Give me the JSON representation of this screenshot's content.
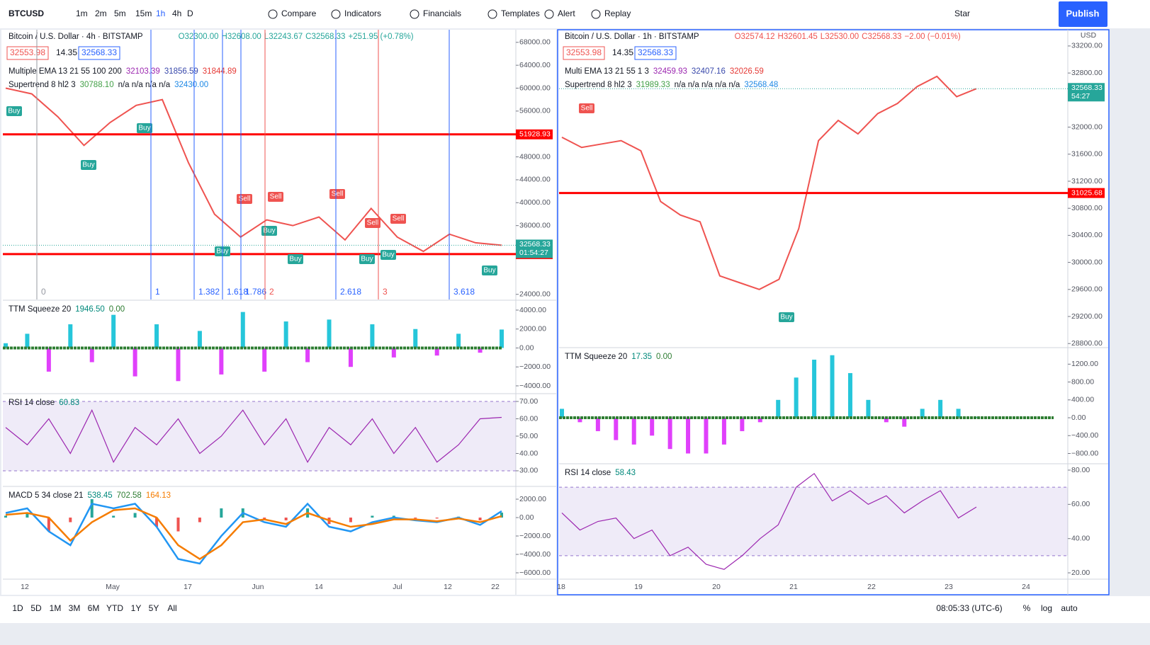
{
  "toolbar": {
    "symbol": "BTCUSD",
    "intervals": [
      "1m",
      "2m",
      "5m",
      "15m",
      "1h",
      "4h",
      "D"
    ],
    "buttons": [
      "Compare",
      "Indicators",
      "Financials",
      "Templates",
      "Alert",
      "Replay"
    ],
    "star": "Star",
    "publish": "Publish"
  },
  "left": {
    "header": {
      "title": "Bitcoin / U.S. Dollar · 4h · BITSTAMP",
      "ohlc": [
        "O32300.00",
        "H32608.00",
        "L32243.67",
        "C32568.33"
      ],
      "change": "+251.95 (+0.78%)",
      "color": "#26a69a",
      "boxes": [
        "32553.98",
        "14.35",
        "32568.33"
      ]
    },
    "studies": [
      {
        "name": "Multiple EMA 13 21 55 100 200",
        "values": [
          "32103.39",
          "31856.59",
          "31844.89"
        ]
      },
      {
        "name": "Supertrend 8 hl2 3",
        "values": [
          "30788.10",
          "n/a n/a n/a n/a",
          "32430.00"
        ]
      }
    ],
    "main": {
      "ylim": [
        23100,
        70200
      ],
      "yticks": [
        {
          "value": 68000,
          "label": "68000.00"
        },
        {
          "value": 64000,
          "label": "64000.00"
        },
        {
          "value": 60000,
          "label": "60000.00"
        },
        {
          "value": 56000,
          "label": "56000.00"
        },
        {
          "value": 48000,
          "label": "48000.00"
        },
        {
          "value": 44000,
          "label": "44000.00"
        },
        {
          "value": 40000,
          "label": "40000.00"
        },
        {
          "value": 36000,
          "label": "36000.00"
        },
        {
          "value": 24000,
          "label": "24000.00"
        }
      ],
      "close": [
        60000,
        59000,
        55000,
        50000,
        54000,
        57000,
        58000,
        47000,
        38000,
        34000,
        37000,
        36000,
        37500,
        33500,
        39000,
        34000,
        31500,
        34500,
        33000,
        32568.33
      ],
      "levels": [
        51928.93,
        31025.68
      ],
      "last": 32568.33,
      "countdown": "01:54:27"
    },
    "fib": [
      0,
      1,
      1.382,
      1.618,
      1.786,
      2,
      2.618,
      3,
      3.618
    ],
    "signals": [
      "Buy",
      "Buy",
      "Buy",
      "Buy",
      "Buy",
      "Buy",
      "Buy",
      "Buy",
      "Buy",
      "Sell",
      "Sell",
      "Sell",
      "Sell",
      "Sell"
    ],
    "ttm": {
      "label": "TTM Squeeze 20",
      "readout": [
        "1946.50",
        "0.00"
      ],
      "ylim": [
        -4750,
        4970
      ],
      "yticks": [
        {
          "value": 4000,
          "label": "4000.00"
        },
        {
          "value": 2000,
          "label": "2000.00"
        },
        {
          "value": 0,
          "label": "0.00"
        },
        {
          "value": -2000,
          "label": "−2000.00"
        },
        {
          "value": -4000,
          "label": "−4000.00"
        }
      ],
      "values": [
        500,
        1500,
        -2500,
        2500,
        -1500,
        3500,
        -3000,
        2500,
        -3500,
        1800,
        -2800,
        3800,
        -2500,
        2800,
        -1500,
        3000,
        -2000,
        2500,
        -1000,
        2000,
        -800,
        1500,
        -500,
        1946.5
      ]
    },
    "rsi": {
      "label": "RSI 14 close",
      "readout": [
        "60.83"
      ],
      "band": [
        30,
        70
      ],
      "ylim": [
        21.4,
        74.1
      ],
      "yticks": [
        {
          "value": 70,
          "label": "70.00"
        },
        {
          "value": 60,
          "label": "60.00"
        },
        {
          "value": 50,
          "label": "50.00"
        },
        {
          "value": 40,
          "label": "40.00"
        },
        {
          "value": 30,
          "label": "30.00"
        }
      ],
      "values": [
        55,
        45,
        60,
        40,
        65,
        35,
        55,
        45,
        60,
        40,
        50,
        65,
        45,
        60,
        35,
        55,
        45,
        60,
        40,
        55,
        35,
        45,
        60,
        60.83
      ]
    },
    "macd": {
      "label": "MACD 5 34 close 21",
      "readout": [
        "538.45",
        "702.58",
        "164.13"
      ],
      "ylim": [
        -6690,
        3310
      ],
      "yticks": [
        {
          "value": 2000,
          "label": "2000.00"
        },
        {
          "value": 0,
          "label": "0.00"
        },
        {
          "value": -2000,
          "label": "−2000.00"
        },
        {
          "value": -4000,
          "label": "−4000.00"
        },
        {
          "value": -6000,
          "label": "−6000.00"
        }
      ],
      "hist": [
        200,
        500,
        -1500,
        -500,
        2000,
        200,
        500,
        -1000,
        -1500,
        -500,
        1000,
        1000,
        -300,
        -300,
        1000,
        -700,
        -500,
        200,
        200,
        -100,
        -100,
        100,
        -300,
        538.45
      ],
      "macd": [
        500,
        1000,
        -1500,
        -3000,
        1500,
        1000,
        1500,
        -1000,
        -4500,
        -5000,
        -2000,
        500,
        -500,
        -1000,
        1500,
        -1000,
        -1500,
        -500,
        0,
        -300,
        -500,
        0,
        -800,
        702.58
      ],
      "signal": [
        300,
        500,
        0,
        -2500,
        -500,
        800,
        1000,
        0,
        -3000,
        -4500,
        -3000,
        -500,
        -200,
        -700,
        500,
        -300,
        -1000,
        -700,
        -200,
        -200,
        -400,
        -100,
        -500,
        164.13
      ],
      "macd_color": "#2196f3",
      "signal_color": "#f57c00"
    },
    "xlabels": [
      "12",
      "May",
      "17",
      "Jun",
      "14",
      "Jul",
      "12",
      "22"
    ]
  },
  "right": {
    "header": {
      "title": "Bitcoin / U.S. Dollar · 1h · BITSTAMP",
      "ohlc": [
        "O32574.12",
        "H32601.45",
        "L32530.00",
        "C32568.33"
      ],
      "change": "−2.00 (−0.01%)",
      "color": "#ef5350",
      "boxes": [
        "32553.98",
        "14.35",
        "32568.33"
      ]
    },
    "studies": [
      {
        "name": "Multi EMA 13 21 55 1 3",
        "values": [
          "32459.93",
          "32407.16",
          "32026.59"
        ]
      },
      {
        "name": "Supertrend 8 hl2 3",
        "values": [
          "31989.33",
          "n/a n/a n/a n/a n/a",
          "32568.48"
        ]
      }
    ],
    "currency": "USD",
    "main": {
      "ylim": [
        28750,
        33440
      ],
      "yticks": [
        {
          "value": 33200,
          "label": "33200.00"
        },
        {
          "value": 32800,
          "label": "32800.00"
        },
        {
          "value": 32000,
          "label": "32000.00"
        },
        {
          "value": 31600,
          "label": "31600.00"
        },
        {
          "value": 31200,
          "label": "31200.00"
        },
        {
          "value": 30800,
          "label": "30800.00"
        },
        {
          "value": 30400,
          "label": "30400.00"
        },
        {
          "value": 30000,
          "label": "30000.00"
        },
        {
          "value": 29600,
          "label": "29600.00"
        },
        {
          "value": 29200,
          "label": "29200.00"
        },
        {
          "value": 28800,
          "label": "28800.00"
        }
      ],
      "close": [
        31850,
        31700,
        31750,
        31800,
        31650,
        30900,
        30700,
        30600,
        29800,
        29700,
        29600,
        29750,
        30500,
        31800,
        32100,
        31900,
        32200,
        32350,
        32600,
        32750,
        32450,
        32568.33
      ],
      "levels": [
        31025.68
      ],
      "last": 32568.33,
      "countdown": "54:27"
    },
    "signals": [
      "Sell",
      "Buy"
    ],
    "ttm": {
      "label": "TTM Squeeze 20",
      "readout": [
        "17.35",
        "0.00"
      ],
      "ylim": [
        -1014,
        1554
      ],
      "yticks": [
        {
          "value": 1200,
          "label": "1200.00"
        },
        {
          "value": 800,
          "label": "800.00"
        },
        {
          "value": 400,
          "label": "400.00"
        },
        {
          "value": 0,
          "label": "0.00"
        },
        {
          "value": -400,
          "label": "−400.00"
        },
        {
          "value": -800,
          "label": "−800.00"
        }
      ],
      "values": [
        200,
        -100,
        -300,
        -500,
        -600,
        -400,
        -700,
        -800,
        -800,
        -600,
        -300,
        -100,
        400,
        900,
        1300,
        1400,
        1000,
        400,
        -100,
        -200,
        200,
        400,
        200,
        17.35
      ]
    },
    "rsi": {
      "label": "RSI 14 close",
      "readout": [
        "58.43"
      ],
      "band": [
        30,
        70
      ],
      "ylim": [
        16.3,
        83.3
      ],
      "yticks": [
        {
          "value": 80,
          "label": "80.00"
        },
        {
          "value": 60,
          "label": "60.00"
        },
        {
          "value": 40,
          "label": "40.00"
        },
        {
          "value": 20,
          "label": "20.00"
        }
      ],
      "values": [
        55,
        45,
        50,
        52,
        40,
        45,
        30,
        35,
        25,
        22,
        30,
        40,
        48,
        70,
        78,
        62,
        68,
        60,
        65,
        55,
        62,
        68,
        52,
        58.43
      ]
    },
    "xlabels": [
      "18",
      "19",
      "20",
      "21",
      "22",
      "23",
      "24"
    ]
  },
  "bottom": {
    "ranges": [
      "1D",
      "5D",
      "1M",
      "3M",
      "6M",
      "YTD",
      "1Y",
      "5Y",
      "All"
    ],
    "clock": "08:05:33 (UTC-6)",
    "options": [
      "%",
      "log",
      "auto"
    ]
  }
}
